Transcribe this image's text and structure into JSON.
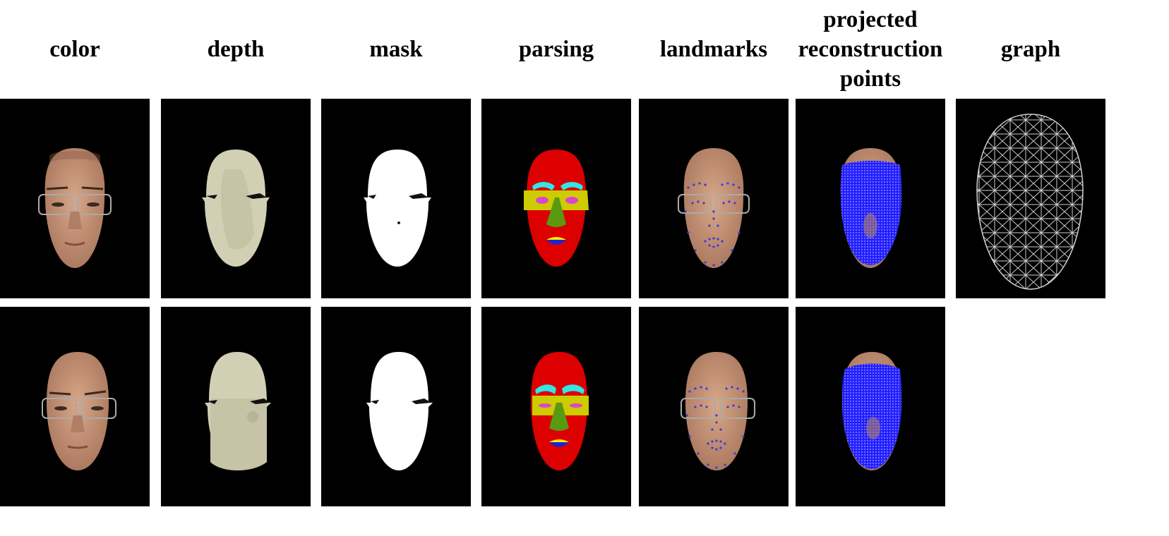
{
  "columns": [
    {
      "key": "color",
      "label": "color"
    },
    {
      "key": "depth",
      "label": "depth"
    },
    {
      "key": "mask",
      "label": "mask"
    },
    {
      "key": "parsing",
      "label": "parsing"
    },
    {
      "key": "landmarks",
      "label": "landmarks"
    },
    {
      "key": "projected",
      "label_lines": [
        "projected",
        "reconstruction",
        "points"
      ]
    },
    {
      "key": "graph",
      "label": "graph"
    }
  ],
  "rows": [
    {
      "name": "row-1",
      "panels": [
        "color",
        "depth",
        "mask",
        "parsing",
        "landmarks",
        "projected",
        "graph"
      ]
    },
    {
      "name": "row-2",
      "panels": [
        "color",
        "depth",
        "mask",
        "parsing",
        "landmarks",
        "projected"
      ]
    }
  ],
  "colors": {
    "background": "#000000",
    "skin": "#c89478",
    "depth_fill": "#d2d0b4",
    "mask_fill": "#ffffff",
    "parsing_skin": "#dd0000",
    "parsing_brows": "#33e6e6",
    "parsing_eyes_region": "#cccc00",
    "parsing_eyes": "#dd44cc",
    "parsing_nose": "#5a9a10",
    "parsing_lips_upper": "#ffee00",
    "parsing_lips_lower": "#2222cc",
    "landmark_dots": "#3b3bdd",
    "projected_points": "#1a1aff",
    "graph_mesh": "#c8c8c8"
  }
}
